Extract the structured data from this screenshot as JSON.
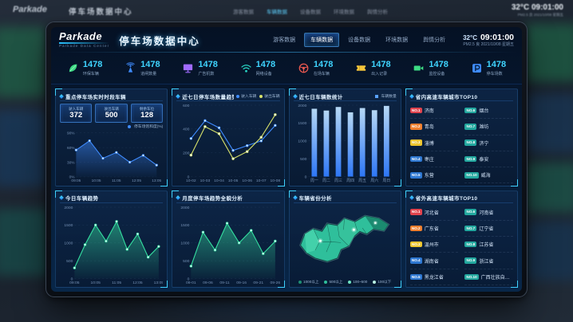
{
  "background": {
    "logo": "Parkade",
    "title": "停车场数据中心",
    "nav": [
      "游客数据",
      "车辆数据",
      "设备数据",
      "环境数据",
      "舆情分析"
    ],
    "temp": "32°C",
    "time": "09:01:00",
    "subline": "PM2.5 良  2021/10/08 星期五"
  },
  "screen": {
    "header": {
      "logo": "Parkade",
      "logo_sub": "Parkade Data Center",
      "title": "停车场数据中心",
      "nav": [
        {
          "label": "游客数据",
          "active": false
        },
        {
          "label": "车辆数据",
          "active": true
        },
        {
          "label": "设备数据",
          "active": false
        },
        {
          "label": "环境数据",
          "active": false
        },
        {
          "label": "舆情分析",
          "active": false
        }
      ],
      "weather": {
        "temp": "32°C",
        "time": "09:01:00",
        "pm_label": "PM2.5",
        "pm_value": "良",
        "date": "2021/10/08 星期五"
      }
    },
    "kpis": [
      {
        "value": "1478",
        "label": "环保车辆",
        "icon": "leaf-icon",
        "color": "#3ddc84"
      },
      {
        "value": "1478",
        "label": "道闸数量",
        "icon": "antenna-icon",
        "color": "#3f8cff"
      },
      {
        "value": "1478",
        "label": "广告机数",
        "icon": "monitor-icon",
        "color": "#a06bff"
      },
      {
        "value": "1478",
        "label": "网络设备",
        "icon": "wifi-icon",
        "color": "#27d3c3"
      },
      {
        "value": "1478",
        "label": "在场车辆",
        "icon": "steering-wheel-icon",
        "color": "#f05a50"
      },
      {
        "value": "1478",
        "label": "出入记录",
        "icon": "ticket-icon",
        "color": "#f5c53a"
      },
      {
        "value": "1478",
        "label": "监控设备",
        "icon": "camera-icon",
        "color": "#3ddc84"
      },
      {
        "value": "1478",
        "label": "停车场数",
        "icon": "parking-icon",
        "color": "#3f8cff"
      }
    ],
    "panels": {
      "realtime": {
        "title": "重点停车场实时时段车辆",
        "legend": "停车场饱和度(%)",
        "stats": [
          {
            "label": "驶入车辆",
            "value": "372"
          },
          {
            "label": "驶出车辆",
            "value": "500"
          },
          {
            "label": "剩余车位",
            "value": "128"
          }
        ]
      },
      "sevenDayTrend": {
        "title": "近七日停车场数量趋势"
      },
      "sevenDayCount": {
        "title": "近七日车辆数统计",
        "legend": "车辆数量"
      },
      "topInside": {
        "title": "省内高速车辆城市TOP10",
        "items": [
          {
            "rank": "NO.1",
            "name": "济南",
            "color": "#e0434d"
          },
          {
            "rank": "NO.2",
            "name": "青岛",
            "color": "#f07f2e"
          },
          {
            "rank": "NO.3",
            "name": "淄博",
            "color": "#edc52e"
          },
          {
            "rank": "NO.4",
            "name": "枣庄",
            "color": "#2e78d2"
          },
          {
            "rank": "NO.5",
            "name": "东营",
            "color": "#2e78d2"
          },
          {
            "rank": "NO.6",
            "name": "烟台",
            "color": "#23a89f"
          },
          {
            "rank": "NO.7",
            "name": "潍坊",
            "color": "#23a89f"
          },
          {
            "rank": "NO.8",
            "name": "济宁",
            "color": "#23a89f"
          },
          {
            "rank": "NO.9",
            "name": "泰安",
            "color": "#23a89f"
          },
          {
            "rank": "NO.10",
            "name": "威海",
            "color": "#23a89f"
          }
        ]
      },
      "todayTrend": {
        "title": "今日车辆趋势"
      },
      "monthlyTrend": {
        "title": "月度停车场趋势全貌分析"
      },
      "provinceMap": {
        "title": "车辆省份分析",
        "legend": [
          {
            "label": "1000以上",
            "color": "#1f8f74"
          },
          {
            "label": "500以上",
            "color": "#2fbf9b"
          },
          {
            "label": "100~500",
            "color": "#6fe3c2"
          },
          {
            "label": "100以下",
            "color": "#b9f2e2"
          }
        ]
      },
      "topOutside": {
        "title": "省外高速车辆城市TOP10",
        "items": [
          {
            "rank": "NO.1",
            "name": "河北省",
            "color": "#e0434d"
          },
          {
            "rank": "NO.2",
            "name": "广东省",
            "color": "#f07f2e"
          },
          {
            "rank": "NO.3",
            "name": "温州市",
            "color": "#edc52e"
          },
          {
            "rank": "NO.4",
            "name": "湖南省",
            "color": "#2e78d2"
          },
          {
            "rank": "NO.5",
            "name": "黑龙江省",
            "color": "#2e78d2"
          },
          {
            "rank": "NO.6",
            "name": "河南省",
            "color": "#23a89f"
          },
          {
            "rank": "NO.7",
            "name": "辽宁省",
            "color": "#23a89f"
          },
          {
            "rank": "NO.8",
            "name": "江苏省",
            "color": "#23a89f"
          },
          {
            "rank": "NO.9",
            "name": "浙江省",
            "color": "#23a89f"
          },
          {
            "rank": "NO.10",
            "name": "广西壮族自治区",
            "color": "#23a89f"
          }
        ]
      }
    }
  },
  "chart_data": [
    {
      "id": "saturation",
      "type": "area",
      "title": "重点停车场实时时段车辆",
      "legend": [
        "停车场饱和度(%)"
      ],
      "x": [
        "09:05",
        "10:05",
        "11:05",
        "12:05",
        "13:05"
      ],
      "values": [
        55,
        74,
        38,
        50,
        30,
        44,
        24
      ],
      "yticks": [
        "90%",
        "60%",
        "30%",
        "0%"
      ],
      "ylim": [
        0,
        90
      ],
      "color": "#3f8cff"
    },
    {
      "id": "seven-day-flow",
      "type": "line",
      "title": "近七日停车场数量趋势",
      "x": [
        "10-02",
        "10-03",
        "10-04",
        "10-05",
        "10-06",
        "10-07",
        "10-08"
      ],
      "series": [
        {
          "name": "驶入车辆",
          "color": "#3f8cff",
          "values": [
            320,
            470,
            410,
            220,
            260,
            300,
            430
          ]
        },
        {
          "name": "驶出车辆",
          "color": "#d8e26a",
          "values": [
            180,
            420,
            360,
            150,
            210,
            330,
            520
          ]
        }
      ],
      "yticks": [
        "600",
        "400",
        "200",
        "0"
      ],
      "ylim": [
        0,
        600
      ]
    },
    {
      "id": "seven-day-count",
      "type": "bar",
      "title": "近七日车辆数统计",
      "legend": [
        "车辆数量"
      ],
      "categories": [
        "周一",
        "周二",
        "周三",
        "周四",
        "周五",
        "周六",
        "周日"
      ],
      "values": [
        1900,
        1850,
        1950,
        1800,
        1920,
        1860,
        1980
      ],
      "yticks": [
        "2000",
        "1500",
        "1000",
        "500",
        "0"
      ],
      "ylim": [
        0,
        2000
      ],
      "color": "#2f7bff"
    },
    {
      "id": "today-trend",
      "type": "area",
      "title": "今日车辆趋势",
      "x": [
        "09:05",
        "10:05",
        "11:05",
        "12:05",
        "13:05"
      ],
      "values": [
        300,
        950,
        1500,
        1050,
        1600,
        820,
        1250,
        600,
        900
      ],
      "yticks": [
        "2000",
        "1500",
        "1000",
        "500",
        "0"
      ],
      "ylim": [
        0,
        2000
      ],
      "color": "#35e0a1"
    },
    {
      "id": "monthly-trend",
      "type": "area",
      "title": "月度停车场趋势全貌分析",
      "x": [
        "09-01",
        "09-06",
        "09-11",
        "09-16",
        "09-21",
        "09-26"
      ],
      "values": [
        350,
        1300,
        800,
        1550,
        1000,
        1350,
        700,
        1050
      ],
      "yticks": [
        "2000",
        "1500",
        "1000",
        "500",
        "0"
      ],
      "ylim": [
        0,
        2000
      ],
      "color": "#35e0a1"
    }
  ]
}
